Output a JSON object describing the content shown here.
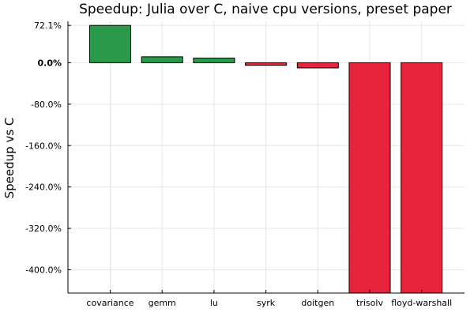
{
  "chart_data": {
    "type": "bar",
    "title": "Speedup: Julia over C, naive cpu versions, preset paper",
    "xlabel": "",
    "ylabel": "Speedup vs C",
    "categories": [
      "covariance",
      "gemm",
      "lu",
      "syrk",
      "doitgen",
      "trisolv",
      "floyd-warshall"
    ],
    "values": [
      72.1,
      11.5,
      9.0,
      -5.0,
      -10.0,
      -445.0,
      -445.0
    ],
    "ylim": [
      -445,
      80
    ],
    "yticks": [
      {
        "value": 72.1,
        "label": "72.1%",
        "bold": false
      },
      {
        "value": 0,
        "label": "0.0%",
        "bold": true
      },
      {
        "value": -80,
        "label": "-80.0%",
        "bold": false
      },
      {
        "value": -160,
        "label": "-160.0%",
        "bold": false
      },
      {
        "value": -240,
        "label": "-240.0%",
        "bold": false
      },
      {
        "value": -320,
        "label": "-320.0%",
        "bold": false
      },
      {
        "value": -400,
        "label": "-400.0%",
        "bold": false
      }
    ],
    "colors": {
      "positive": "#2a9a4a",
      "negative": "#e8243d"
    },
    "grid": true,
    "legend": "none"
  }
}
